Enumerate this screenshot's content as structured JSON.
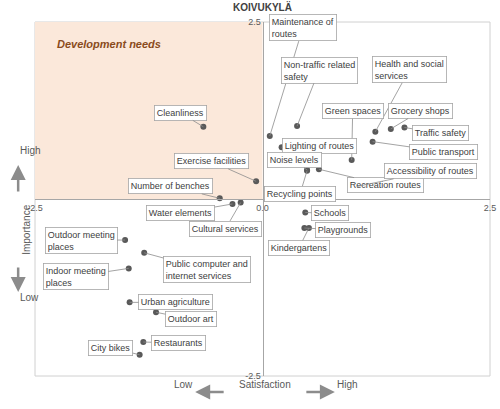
{
  "chart_data": {
    "type": "scatter",
    "title": "KOIVUKYLÄ",
    "x_label": "Satisfaction",
    "y_label": "Importance",
    "x_end_labels": [
      "Low",
      "High"
    ],
    "y_end_labels": [
      "Low",
      "High"
    ],
    "color": "#595959",
    "marker": "circle",
    "grid": false,
    "xlim": [
      -2.5,
      2.5
    ],
    "ylim": [
      -2.5,
      2.5
    ],
    "xticks": [
      -2.5,
      {
        "value": 0,
        "label": "0.0"
      },
      2.5
    ],
    "yticks": [
      -2.5,
      2.5
    ],
    "labels": [
      "Cleanliness",
      "Maintenance of routes",
      "Non-traffic related safety",
      "Health and social services",
      "Green spaces",
      "Grocery shops",
      "Traffic safety",
      "Lighting of routes",
      "Public transport",
      "Noise levels",
      "Recycling points",
      "Recreation routes",
      "Accessibility of routes",
      "Exercise facilities",
      "Number of benches",
      "Water elements",
      "Cultural services",
      "Schools",
      "Playgrounds",
      "Kindergartens",
      "Outdoor meeting places",
      "Indoor meeting places",
      "Public computer and internet services",
      "Urban agriculture",
      "Outdoor art",
      "Restaurants",
      "City bikes"
    ],
    "x": [
      -0.65,
      0.08,
      0.38,
      1.24,
      0.98,
      1.41,
      1.56,
      0.21,
      1.21,
      0.49,
      0.49,
      0.62,
      1.05,
      -0.07,
      -0.47,
      -0.33,
      -0.24,
      0.47,
      0.46,
      0.51,
      -1.51,
      -1.47,
      -1.3,
      -1.46,
      -1.17,
      -1.31,
      -1.35
    ],
    "values": [
      1.02,
      0.89,
      1.03,
      0.95,
      0.55,
      0.99,
      1.01,
      0.73,
      0.81,
      0.41,
      0.4,
      0.42,
      0.18,
      0.25,
      0.01,
      -0.07,
      -0.05,
      -0.19,
      -0.41,
      -0.41,
      -0.58,
      -0.98,
      -0.76,
      -1.46,
      -1.6,
      -2.02,
      -2.2
    ],
    "annotations": [
      {
        "text": "Development needs",
        "xlim": [
          -2.5,
          0
        ],
        "ylim": [
          0,
          2.5
        ],
        "color": "#fbe8da"
      }
    ]
  }
}
